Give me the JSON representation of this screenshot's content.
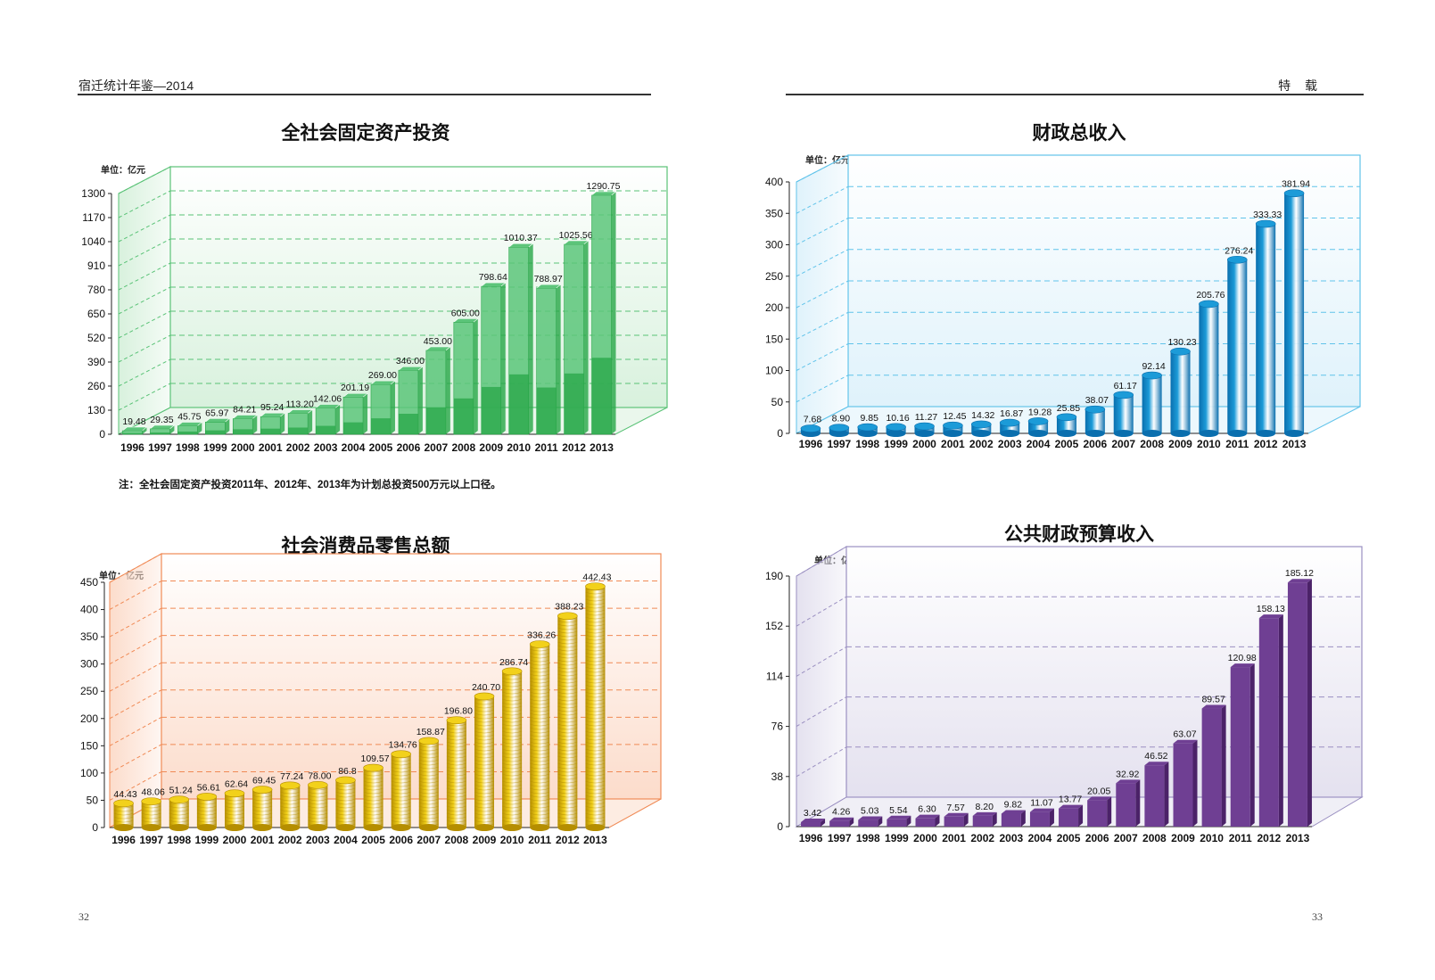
{
  "header": {
    "left": "宿迁统计年鉴—2014",
    "right": "特 载"
  },
  "page_numbers": {
    "left": "32",
    "right": "33"
  },
  "note": "注：全社会固定资产投资2011年、2012年、2013年为计划总投资500万元以上口径。",
  "chart_data": [
    {
      "id": "fai",
      "type": "bar",
      "title": "全社会固定资产投资",
      "unit_label": "单位：亿元",
      "categories": [
        "1996",
        "1997",
        "1998",
        "1999",
        "2000",
        "2001",
        "2002",
        "2003",
        "2004",
        "2005",
        "2006",
        "2007",
        "2008",
        "2009",
        "2010",
        "2011",
        "2012",
        "2013"
      ],
      "values": [
        19.48,
        29.35,
        45.75,
        65.97,
        84.21,
        95.24,
        113.2,
        142.06,
        201.19,
        269.0,
        346.0,
        453.0,
        605.0,
        798.64,
        1010.37,
        788.97,
        1025.56,
        1290.75
      ],
      "value_labels": [
        "19.48",
        "29.35",
        "45.75",
        "65.97",
        "84.21",
        "95.24",
        "113.20",
        "142.06",
        "201.19",
        "269.00",
        "346.00",
        "453.00",
        "605.00",
        "798.64",
        "1010.37",
        "788.97",
        "1025.56",
        "1290.75"
      ],
      "yticks": [
        "0",
        "130",
        "260",
        "390",
        "520",
        "650",
        "780",
        "910",
        "1040",
        "1170",
        "1300"
      ],
      "ylim": [
        0,
        1300
      ],
      "grid": true,
      "colors": {
        "bar": "#5cc57a",
        "bar_dark": "#27a647",
        "back": "#d8f1dd",
        "edge": "#59c276"
      }
    },
    {
      "id": "revenue",
      "type": "bar",
      "title": "财政总收入",
      "unit_label": "单位：亿元",
      "categories": [
        "1996",
        "1997",
        "1998",
        "1999",
        "2000",
        "2001",
        "2002",
        "2003",
        "2004",
        "2005",
        "2006",
        "2007",
        "2008",
        "2009",
        "2010",
        "2011",
        "2012",
        "2013"
      ],
      "values": [
        7.68,
        8.9,
        9.85,
        10.16,
        11.27,
        12.45,
        14.32,
        16.87,
        19.28,
        25.85,
        38.07,
        61.17,
        92.14,
        130.23,
        205.76,
        276.24,
        333.33,
        381.94
      ],
      "value_labels": [
        "7.68",
        "8.90",
        "9.85",
        "10.16",
        "11.27",
        "12.45",
        "14.32",
        "16.87",
        "19.28",
        "25.85",
        "38.07",
        "61.17",
        "92.14",
        "130.23",
        "205.76",
        "276.24",
        "333.33",
        "381.94"
      ],
      "yticks": [
        "0",
        "50",
        "100",
        "150",
        "200",
        "250",
        "300",
        "350",
        "400"
      ],
      "ylim": [
        0,
        400
      ],
      "grid": true,
      "colors": {
        "bar": "#1c9bd8",
        "bar_dark": "#0a6fae",
        "back": "#dff2fb",
        "edge": "#60c3ea"
      }
    },
    {
      "id": "retail",
      "type": "bar",
      "title": "社会消费品零售总额",
      "unit_label": "单位：亿元",
      "categories": [
        "1996",
        "1997",
        "1998",
        "1999",
        "2000",
        "2001",
        "2002",
        "2003",
        "2004",
        "2005",
        "2006",
        "2007",
        "2008",
        "2009",
        "2010",
        "2011",
        "2012",
        "2013"
      ],
      "values": [
        44.43,
        48.06,
        51.24,
        56.61,
        62.64,
        69.45,
        77.24,
        78.0,
        86.8,
        109.57,
        134.76,
        158.87,
        196.8,
        240.7,
        286.74,
        336.26,
        388.23,
        442.43
      ],
      "value_labels": [
        "44.43",
        "48.06",
        "51.24",
        "56.61",
        "62.64",
        "69.45",
        "77.24",
        "78.00",
        "86.8",
        "109.57",
        "134.76",
        "158.87",
        "196.80",
        "240.70",
        "286.74",
        "336.26",
        "388.23",
        "442.43"
      ],
      "yticks": [
        "0",
        "50",
        "100",
        "150",
        "200",
        "250",
        "300",
        "350",
        "400",
        "450"
      ],
      "ylim": [
        0,
        450
      ],
      "grid": true,
      "colors": {
        "bar": "#f2d11b",
        "bar_dark": "#b58e00",
        "back": "#fcdccb",
        "edge": "#f08a55"
      }
    },
    {
      "id": "budget",
      "type": "bar",
      "title": "公共财政预算收入",
      "unit_label": "单位：亿元",
      "categories": [
        "1996",
        "1997",
        "1998",
        "1999",
        "2000",
        "2001",
        "2002",
        "2003",
        "2004",
        "2005",
        "2006",
        "2007",
        "2008",
        "2009",
        "2010",
        "2011",
        "2012",
        "2013"
      ],
      "values": [
        3.42,
        4.26,
        5.03,
        5.54,
        6.3,
        7.57,
        8.2,
        9.82,
        11.07,
        13.77,
        20.05,
        32.92,
        46.52,
        63.07,
        89.57,
        120.98,
        158.13,
        185.12
      ],
      "value_labels": [
        "3.42",
        "4.26",
        "5.03",
        "5.54",
        "6.30",
        "7.57",
        "8.20",
        "9.82",
        "11.07",
        "13.77",
        "20.05",
        "32.92",
        "46.52",
        "63.07",
        "89.57",
        "120.98",
        "158.13",
        "185.12"
      ],
      "yticks": [
        "0",
        "38",
        "76",
        "114",
        "152",
        "190"
      ],
      "ylim": [
        0,
        190
      ],
      "grid": true,
      "colors": {
        "bar": "#6f3f93",
        "bar_dark": "#4b2268",
        "back": "#e4e1ef",
        "edge": "#9a8fc1"
      }
    }
  ]
}
